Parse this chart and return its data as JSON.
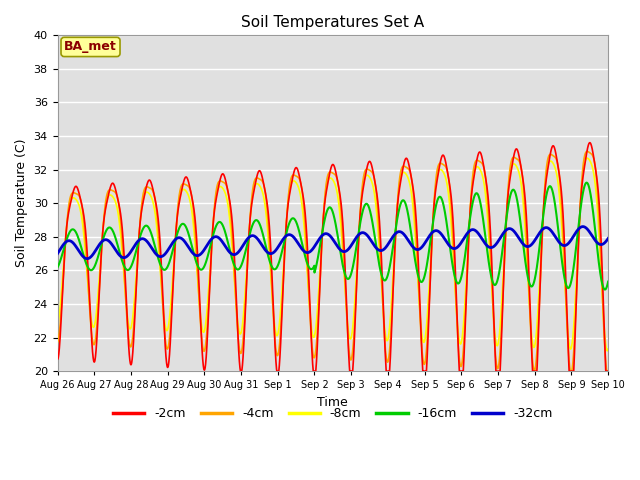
{
  "title": "Soil Temperatures Set A",
  "xlabel": "Time",
  "ylabel": "Soil Temperature (C)",
  "ylim": [
    20,
    40
  ],
  "yticks": [
    20,
    22,
    24,
    26,
    28,
    30,
    32,
    34,
    36,
    38,
    40
  ],
  "bg_color": "#e0e0e0",
  "annotation": "BA_met",
  "annotation_color": "#8b0000",
  "annotation_bg": "#ffff99",
  "line_colors": {
    "-2cm": "#ff0000",
    "-4cm": "#ffa500",
    "-8cm": "#ffff00",
    "-16cm": "#00cc00",
    "-32cm": "#0000cc"
  },
  "line_widths": {
    "-2cm": 1.2,
    "-4cm": 1.2,
    "-8cm": 1.2,
    "-16cm": 1.5,
    "-32cm": 2.0
  },
  "xtick_labels": [
    "Aug 26",
    "Aug 27",
    "Aug 28",
    "Aug 29",
    "Aug 30",
    "Aug 31",
    "Sep 1",
    "Sep 2",
    "Sep 3",
    "Sep 4",
    "Sep 5",
    "Sep 6",
    "Sep 7",
    "Sep 8",
    "Sep 9",
    "Sep 10"
  ],
  "n_days": 15,
  "points_per_day": 240
}
